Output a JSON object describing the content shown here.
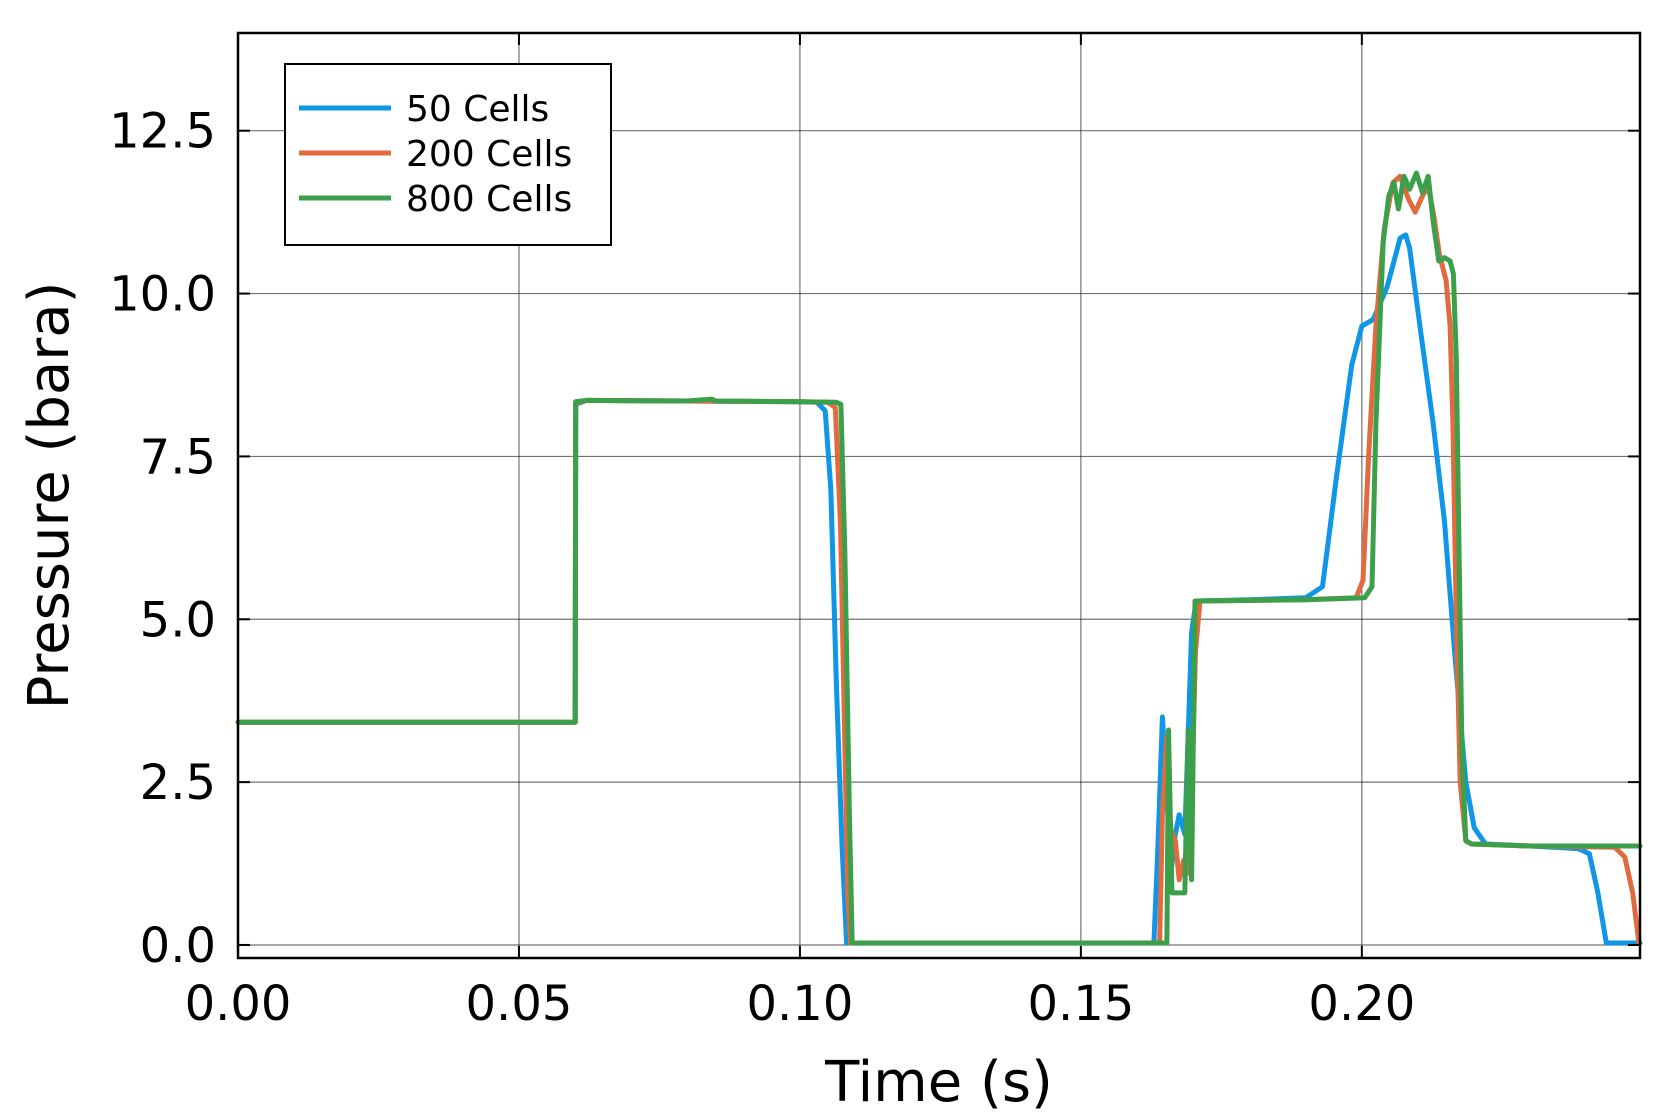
{
  "chart_data": {
    "type": "line",
    "xlabel": "Time (s)",
    "ylabel": "Pressure (bara)",
    "xlim": [
      0.0,
      0.2495
    ],
    "ylim": [
      -0.2,
      14.0
    ],
    "x_ticks": [
      0.0,
      0.05,
      0.1,
      0.15,
      0.2
    ],
    "x_tick_labels": [
      "0.00",
      "0.05",
      "0.10",
      "0.15",
      "0.20"
    ],
    "y_ticks": [
      0.0,
      2.5,
      5.0,
      7.5,
      10.0,
      12.5
    ],
    "y_tick_labels": [
      "0.0",
      "2.5",
      "5.0",
      "7.5",
      "10.0",
      "12.5"
    ],
    "grid": true,
    "legend_position": "top-left",
    "series": [
      {
        "name": "50 Cells",
        "color": "#0f96e6",
        "points": [
          [
            0.0,
            3.42
          ],
          [
            0.06,
            3.42
          ],
          [
            0.0601,
            8.3
          ],
          [
            0.062,
            8.36
          ],
          [
            0.08,
            8.35
          ],
          [
            0.1,
            8.34
          ],
          [
            0.103,
            8.33
          ],
          [
            0.1045,
            8.2
          ],
          [
            0.1055,
            7.0
          ],
          [
            0.1065,
            4.0
          ],
          [
            0.1075,
            1.5
          ],
          [
            0.1083,
            0.03
          ],
          [
            0.12,
            0.03
          ],
          [
            0.14,
            0.03
          ],
          [
            0.163,
            0.03
          ],
          [
            0.1637,
            1.5
          ],
          [
            0.1645,
            3.5
          ],
          [
            0.1652,
            2.5
          ],
          [
            0.166,
            1.1
          ],
          [
            0.1668,
            1.7
          ],
          [
            0.1675,
            2.0
          ],
          [
            0.1685,
            1.7
          ],
          [
            0.169,
            3.0
          ],
          [
            0.1697,
            4.8
          ],
          [
            0.1705,
            5.28
          ],
          [
            0.18,
            5.3
          ],
          [
            0.19,
            5.33
          ],
          [
            0.193,
            5.5
          ],
          [
            0.1955,
            7.2
          ],
          [
            0.1982,
            8.9
          ],
          [
            0.2,
            9.5
          ],
          [
            0.202,
            9.6
          ],
          [
            0.2045,
            10.1
          ],
          [
            0.2068,
            10.85
          ],
          [
            0.2078,
            10.9
          ],
          [
            0.2085,
            10.7
          ],
          [
            0.2105,
            9.4
          ],
          [
            0.2127,
            8.0
          ],
          [
            0.2147,
            6.5
          ],
          [
            0.2165,
            4.5
          ],
          [
            0.2185,
            2.5
          ],
          [
            0.22,
            1.8
          ],
          [
            0.222,
            1.55
          ],
          [
            0.23,
            1.52
          ],
          [
            0.2385,
            1.48
          ],
          [
            0.2405,
            1.4
          ],
          [
            0.242,
            0.8
          ],
          [
            0.2435,
            0.03
          ],
          [
            0.2495,
            0.03
          ]
        ]
      },
      {
        "name": "200 Cells",
        "color": "#e26a3f",
        "points": [
          [
            0.0,
            3.42
          ],
          [
            0.06,
            3.42
          ],
          [
            0.0601,
            8.32
          ],
          [
            0.062,
            8.36
          ],
          [
            0.08,
            8.35
          ],
          [
            0.1,
            8.34
          ],
          [
            0.105,
            8.33
          ],
          [
            0.1063,
            8.25
          ],
          [
            0.1072,
            6.5
          ],
          [
            0.1079,
            3.5
          ],
          [
            0.1085,
            0.8
          ],
          [
            0.109,
            0.03
          ],
          [
            0.12,
            0.03
          ],
          [
            0.14,
            0.03
          ],
          [
            0.164,
            0.03
          ],
          [
            0.1645,
            2.0
          ],
          [
            0.1653,
            3.2
          ],
          [
            0.1659,
            1.8
          ],
          [
            0.1668,
            1.6
          ],
          [
            0.1675,
            1.0
          ],
          [
            0.1683,
            1.3
          ],
          [
            0.169,
            1.1
          ],
          [
            0.1698,
            2.5
          ],
          [
            0.1704,
            4.5
          ],
          [
            0.1712,
            5.28
          ],
          [
            0.19,
            5.3
          ],
          [
            0.199,
            5.33
          ],
          [
            0.2002,
            5.6
          ],
          [
            0.2012,
            7.5
          ],
          [
            0.2025,
            9.5
          ],
          [
            0.204,
            11.0
          ],
          [
            0.2055,
            11.7
          ],
          [
            0.2068,
            11.8
          ],
          [
            0.2083,
            11.45
          ],
          [
            0.2095,
            11.25
          ],
          [
            0.2108,
            11.5
          ],
          [
            0.2118,
            11.65
          ],
          [
            0.2128,
            11.2
          ],
          [
            0.2138,
            10.6
          ],
          [
            0.215,
            10.2
          ],
          [
            0.2157,
            9.5
          ],
          [
            0.2162,
            8.0
          ],
          [
            0.2168,
            5.0
          ],
          [
            0.2175,
            2.5
          ],
          [
            0.2185,
            1.6
          ],
          [
            0.2195,
            1.55
          ],
          [
            0.23,
            1.52
          ],
          [
            0.245,
            1.5
          ],
          [
            0.2468,
            1.35
          ],
          [
            0.2482,
            0.8
          ],
          [
            0.2493,
            0.03
          ]
        ]
      },
      {
        "name": "800 Cells",
        "color": "#3ca04a",
        "points": [
          [
            0.0,
            3.42
          ],
          [
            0.06,
            3.42
          ],
          [
            0.0601,
            8.34
          ],
          [
            0.062,
            8.36
          ],
          [
            0.08,
            8.35
          ],
          [
            0.0843,
            8.38
          ],
          [
            0.085,
            8.35
          ],
          [
            0.1,
            8.34
          ],
          [
            0.1065,
            8.33
          ],
          [
            0.1073,
            8.3
          ],
          [
            0.108,
            6.0
          ],
          [
            0.1088,
            2.0
          ],
          [
            0.1093,
            0.03
          ],
          [
            0.12,
            0.03
          ],
          [
            0.14,
            0.03
          ],
          [
            0.1653,
            0.03
          ],
          [
            0.1656,
            3.3
          ],
          [
            0.1662,
            0.8
          ],
          [
            0.1675,
            0.8
          ],
          [
            0.1685,
            0.8
          ],
          [
            0.1691,
            3.3
          ],
          [
            0.1697,
            1.0
          ],
          [
            0.1703,
            5.28
          ],
          [
            0.171,
            5.28
          ],
          [
            0.19,
            5.3
          ],
          [
            0.2005,
            5.33
          ],
          [
            0.2018,
            5.5
          ],
          [
            0.2025,
            8.0
          ],
          [
            0.2038,
            10.8
          ],
          [
            0.2048,
            11.5
          ],
          [
            0.2057,
            11.7
          ],
          [
            0.2065,
            11.3
          ],
          [
            0.2075,
            11.8
          ],
          [
            0.2085,
            11.6
          ],
          [
            0.2097,
            11.85
          ],
          [
            0.2108,
            11.55
          ],
          [
            0.2118,
            11.8
          ],
          [
            0.2127,
            11.1
          ],
          [
            0.2137,
            10.5
          ],
          [
            0.2147,
            10.55
          ],
          [
            0.2157,
            10.5
          ],
          [
            0.2163,
            10.3
          ],
          [
            0.2168,
            9.0
          ],
          [
            0.2173,
            6.0
          ],
          [
            0.2178,
            3.0
          ],
          [
            0.2185,
            1.6
          ],
          [
            0.2195,
            1.55
          ],
          [
            0.23,
            1.52
          ],
          [
            0.2495,
            1.52
          ]
        ]
      }
    ]
  }
}
